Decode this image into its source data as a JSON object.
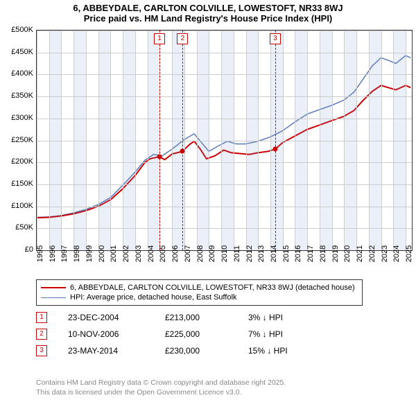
{
  "title": {
    "line1": "6, ABBEYDALE, CARLTON COLVILLE, LOWESTOFT, NR33 8WJ",
    "line2": "Price paid vs. HM Land Registry's House Price Index (HPI)"
  },
  "chart": {
    "type": "line",
    "x_start": 1995.0,
    "x_end": 2025.5,
    "ylim": [
      0,
      500000
    ],
    "ytick_step": 50000,
    "yticks": [
      {
        "v": 0,
        "label": "£0"
      },
      {
        "v": 50000,
        "label": "£50K"
      },
      {
        "v": 100000,
        "label": "£100K"
      },
      {
        "v": 150000,
        "label": "£150K"
      },
      {
        "v": 200000,
        "label": "£200K"
      },
      {
        "v": 250000,
        "label": "£250K"
      },
      {
        "v": 300000,
        "label": "£300K"
      },
      {
        "v": 350000,
        "label": "£350K"
      },
      {
        "v": 400000,
        "label": "£400K"
      },
      {
        "v": 450000,
        "label": "£450K"
      },
      {
        "v": 500000,
        "label": "£500K"
      }
    ],
    "xticks": [
      1995,
      1996,
      1997,
      1998,
      1999,
      2000,
      2001,
      2002,
      2003,
      2004,
      2005,
      2006,
      2007,
      2008,
      2009,
      2010,
      2011,
      2012,
      2013,
      2014,
      2015,
      2016,
      2017,
      2018,
      2019,
      2020,
      2021,
      2022,
      2023,
      2024,
      2025
    ],
    "grid_color": "#cccccc",
    "background_color": "#ffffff",
    "alt_band_color": "rgba(120,150,200,0.15)",
    "sale_line_color": "#cc0000",
    "series": {
      "subject": {
        "color": "#cc0000",
        "width": 2,
        "points": [
          [
            1995.0,
            74000
          ],
          [
            1996.0,
            75000
          ],
          [
            1997.0,
            78000
          ],
          [
            1998.0,
            83000
          ],
          [
            1999.0,
            90000
          ],
          [
            2000.0,
            100000
          ],
          [
            2001.0,
            115000
          ],
          [
            2002.0,
            140000
          ],
          [
            2003.0,
            170000
          ],
          [
            2003.8,
            200000
          ],
          [
            2004.2,
            208000
          ],
          [
            2004.98,
            213000
          ],
          [
            2005.4,
            206000
          ],
          [
            2006.0,
            219000
          ],
          [
            2006.86,
            225000
          ],
          [
            2007.4,
            240000
          ],
          [
            2007.8,
            248000
          ],
          [
            2008.3,
            230000
          ],
          [
            2008.8,
            208000
          ],
          [
            2009.5,
            215000
          ],
          [
            2010.2,
            228000
          ],
          [
            2010.8,
            222000
          ],
          [
            2011.5,
            220000
          ],
          [
            2012.3,
            218000
          ],
          [
            2013.0,
            222000
          ],
          [
            2013.8,
            225000
          ],
          [
            2014.39,
            230000
          ],
          [
            2015.0,
            245000
          ],
          [
            2016.0,
            260000
          ],
          [
            2017.0,
            275000
          ],
          [
            2018.0,
            285000
          ],
          [
            2019.0,
            295000
          ],
          [
            2020.0,
            305000
          ],
          [
            2020.8,
            318000
          ],
          [
            2021.5,
            340000
          ],
          [
            2022.3,
            362000
          ],
          [
            2023.0,
            375000
          ],
          [
            2023.6,
            370000
          ],
          [
            2024.2,
            365000
          ],
          [
            2025.0,
            375000
          ],
          [
            2025.4,
            370000
          ]
        ]
      },
      "hpi": {
        "color": "#5a7bb8",
        "width": 1.5,
        "points": [
          [
            1995.0,
            75000
          ],
          [
            1996.0,
            76000
          ],
          [
            1997.0,
            79000
          ],
          [
            1998.0,
            85000
          ],
          [
            1999.0,
            93000
          ],
          [
            2000.0,
            104000
          ],
          [
            2001.0,
            120000
          ],
          [
            2002.0,
            148000
          ],
          [
            2003.0,
            178000
          ],
          [
            2003.8,
            205000
          ],
          [
            2004.5,
            218000
          ],
          [
            2005.2,
            215000
          ],
          [
            2006.0,
            230000
          ],
          [
            2007.0,
            252000
          ],
          [
            2007.8,
            265000
          ],
          [
            2008.4,
            245000
          ],
          [
            2009.0,
            225000
          ],
          [
            2009.8,
            238000
          ],
          [
            2010.5,
            248000
          ],
          [
            2011.2,
            242000
          ],
          [
            2012.0,
            242000
          ],
          [
            2013.0,
            248000
          ],
          [
            2014.0,
            258000
          ],
          [
            2015.0,
            272000
          ],
          [
            2016.0,
            292000
          ],
          [
            2017.0,
            310000
          ],
          [
            2018.0,
            320000
          ],
          [
            2019.0,
            330000
          ],
          [
            2020.0,
            342000
          ],
          [
            2020.8,
            360000
          ],
          [
            2021.5,
            388000
          ],
          [
            2022.3,
            420000
          ],
          [
            2023.0,
            438000
          ],
          [
            2023.6,
            432000
          ],
          [
            2024.2,
            425000
          ],
          [
            2025.0,
            443000
          ],
          [
            2025.4,
            438000
          ]
        ]
      }
    },
    "sales": [
      {
        "n": "1",
        "x": 2004.98,
        "price": 213000
      },
      {
        "n": "2",
        "x": 2006.86,
        "price": 225000
      },
      {
        "n": "3",
        "x": 2014.39,
        "price": 230000
      }
    ]
  },
  "legend": {
    "subject": "6, ABBEYDALE, CARLTON COLVILLE, LOWESTOFT, NR33 8WJ (detached house)",
    "hpi": "HPI: Average price, detached house, East Suffolk"
  },
  "sales_table": [
    {
      "n": "1",
      "date": "23-DEC-2004",
      "price": "£213,000",
      "pct": "3% ↓ HPI"
    },
    {
      "n": "2",
      "date": "10-NOV-2006",
      "price": "£225,000",
      "pct": "7% ↓ HPI"
    },
    {
      "n": "3",
      "date": "23-MAY-2014",
      "price": "£230,000",
      "pct": "15% ↓ HPI"
    }
  ],
  "footer": {
    "line1": "Contains HM Land Registry data © Crown copyright and database right 2025.",
    "line2": "This data is licensed under the Open Government Licence v3.0."
  }
}
